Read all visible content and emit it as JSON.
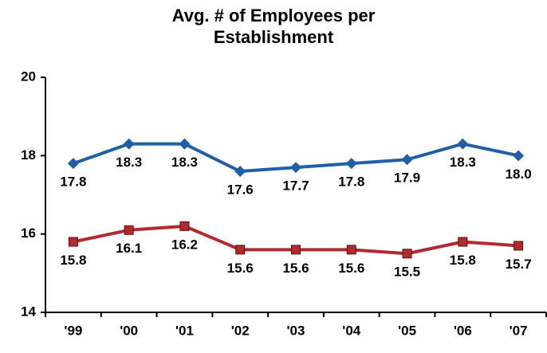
{
  "chart_data": {
    "type": "line",
    "title": "Avg. # of Employees per Establishment",
    "categories": [
      "'99",
      "'00",
      "'01",
      "'02",
      "'03",
      "'04",
      "'05",
      "'06",
      "'07"
    ],
    "series": [
      {
        "color": "#1f5fa6",
        "marker": "diamond",
        "values": [
          17.8,
          18.3,
          18.3,
          17.6,
          17.7,
          17.8,
          17.9,
          18.3,
          18.0
        ],
        "value_labels": [
          "17.8",
          "18.3",
          "18.3",
          "17.6",
          "17.7",
          "17.8",
          "17.9",
          "18.3",
          "18.0"
        ]
      },
      {
        "color": "#b02a2e",
        "marker": "square",
        "values": [
          15.8,
          16.1,
          16.2,
          15.6,
          15.6,
          15.6,
          15.5,
          15.8,
          15.7
        ],
        "value_labels": [
          "15.8",
          "16.1",
          "16.2",
          "15.6",
          "15.6",
          "15.6",
          "15.5",
          "15.8",
          "15.7"
        ]
      }
    ],
    "ylim": [
      14,
      20
    ],
    "yticks": [
      14,
      16,
      18,
      20
    ],
    "grid": false
  }
}
